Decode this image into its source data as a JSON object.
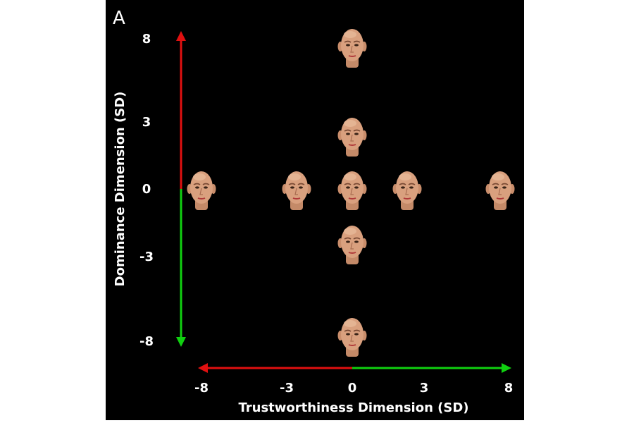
{
  "chart_data": {
    "type": "scatter",
    "panel_label": "A",
    "xlabel": "Trustworthiness Dimension (SD)",
    "ylabel": "Dominance Dimension (SD)",
    "xlim": [
      -8,
      8
    ],
    "ylim": [
      -8,
      8
    ],
    "x_ticks": [
      -8,
      -3,
      0,
      3,
      8
    ],
    "y_ticks": [
      8,
      3,
      0,
      -3,
      -8
    ],
    "x_tick_labels": [
      "-8",
      "-3",
      "0",
      "3",
      "8"
    ],
    "y_tick_labels": [
      "8",
      "3",
      "0",
      "-3",
      "-8"
    ],
    "grid": false,
    "marker": "face-image",
    "points": [
      {
        "x": 0,
        "y": 8
      },
      {
        "x": 0,
        "y": 3
      },
      {
        "x": -8,
        "y": 0
      },
      {
        "x": -3,
        "y": 0
      },
      {
        "x": 0,
        "y": 0
      },
      {
        "x": 3,
        "y": 0
      },
      {
        "x": 8,
        "y": 0
      },
      {
        "x": 0,
        "y": -3
      },
      {
        "x": 0,
        "y": -8
      }
    ],
    "colors": {
      "background": "#000000",
      "text": "#ffffff",
      "negative_arrow": "#e01010",
      "positive_arrow": "#10d010",
      "skin": "#d9a07e"
    }
  }
}
